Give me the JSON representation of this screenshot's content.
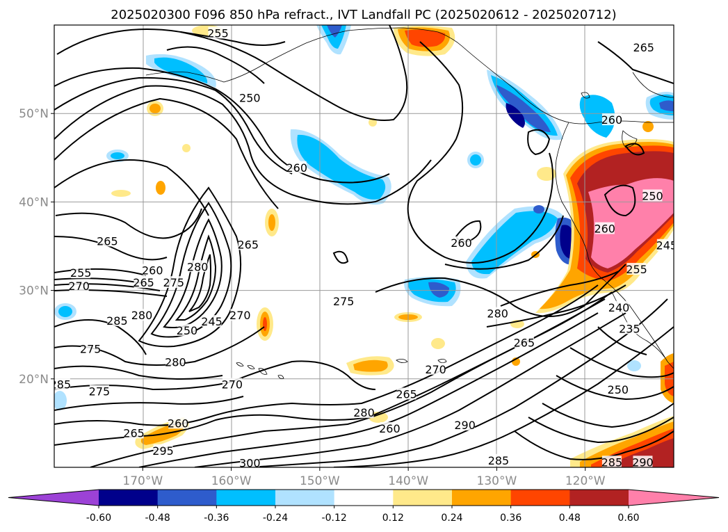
{
  "title": "2025020300 F096 850 hPa refract., IVT Landfall PC (2025020612 - 2025020712)",
  "map": {
    "lon_range": [
      -180,
      -110
    ],
    "lat_range": [
      10,
      60
    ],
    "lon_ticks": [
      {
        "value": -170,
        "label": "170°W"
      },
      {
        "value": -160,
        "label": "160°W"
      },
      {
        "value": -150,
        "label": "150°W"
      },
      {
        "value": -140,
        "label": "140°W"
      },
      {
        "value": -130,
        "label": "130°W"
      },
      {
        "value": -120,
        "label": "120°W"
      }
    ],
    "lat_ticks": [
      {
        "value": 20,
        "label": "20°N"
      },
      {
        "value": 30,
        "label": "30°N"
      },
      {
        "value": 40,
        "label": "40°N"
      },
      {
        "value": 50,
        "label": "50°N"
      }
    ],
    "grid": true,
    "contour_variable": "850 hPa refractivity",
    "contour_labels": [
      {
        "text": "255",
        "lon": -161.5,
        "lat": 59.1
      },
      {
        "text": "250",
        "lon": -157.9,
        "lat": 51.8
      },
      {
        "text": "260",
        "lon": -152.6,
        "lat": 43.9
      },
      {
        "text": "265",
        "lon": -174.0,
        "lat": 35.6
      },
      {
        "text": "255",
        "lon": -177.0,
        "lat": 32.0
      },
      {
        "text": "270",
        "lon": -177.2,
        "lat": 30.5
      },
      {
        "text": "260",
        "lon": -168.9,
        "lat": 32.3
      },
      {
        "text": "265",
        "lon": -169.9,
        "lat": 30.9
      },
      {
        "text": "275",
        "lon": -166.5,
        "lat": 30.9
      },
      {
        "text": "280",
        "lon": -163.8,
        "lat": 32.7
      },
      {
        "text": "265",
        "lon": -158.1,
        "lat": 35.2
      },
      {
        "text": "285",
        "lon": -172.9,
        "lat": 26.6
      },
      {
        "text": "280",
        "lon": -170.1,
        "lat": 27.2
      },
      {
        "text": "250",
        "lon": -165.0,
        "lat": 25.5
      },
      {
        "text": "245",
        "lon": -162.2,
        "lat": 26.5
      },
      {
        "text": "270",
        "lon": -159.0,
        "lat": 27.2
      },
      {
        "text": "275",
        "lon": -175.9,
        "lat": 23.4
      },
      {
        "text": "280",
        "lon": -166.3,
        "lat": 21.9
      },
      {
        "text": "270",
        "lon": -159.9,
        "lat": 19.4
      },
      {
        "text": "275",
        "lon": -174.9,
        "lat": 18.6
      },
      {
        "text": "285",
        "lon": -179.3,
        "lat": 19.4
      },
      {
        "text": "260",
        "lon": -166.0,
        "lat": 15.0
      },
      {
        "text": "265",
        "lon": -171.0,
        "lat": 13.9
      },
      {
        "text": "295",
        "lon": -167.7,
        "lat": 11.9
      },
      {
        "text": "300",
        "lon": -157.9,
        "lat": 10.5
      },
      {
        "text": "275",
        "lon": -147.3,
        "lat": 28.8
      },
      {
        "text": "280",
        "lon": -145.0,
        "lat": 16.2
      },
      {
        "text": "265",
        "lon": -140.2,
        "lat": 18.3
      },
      {
        "text": "270",
        "lon": -136.9,
        "lat": 21.1
      },
      {
        "text": "260",
        "lon": -142.1,
        "lat": 14.4
      },
      {
        "text": "290",
        "lon": -133.6,
        "lat": 14.8
      },
      {
        "text": "280",
        "lon": -129.9,
        "lat": 27.4
      },
      {
        "text": "265",
        "lon": -126.9,
        "lat": 24.1
      },
      {
        "text": "260",
        "lon": -134.0,
        "lat": 35.4
      },
      {
        "text": "265",
        "lon": -113.4,
        "lat": 57.5
      },
      {
        "text": "260",
        "lon": -117.0,
        "lat": 49.3
      },
      {
        "text": "260",
        "lon": -117.8,
        "lat": 37.0
      },
      {
        "text": "250",
        "lon": -112.4,
        "lat": 40.7
      },
      {
        "text": "255",
        "lon": -114.2,
        "lat": 32.4
      },
      {
        "text": "245",
        "lon": -110.8,
        "lat": 35.1
      },
      {
        "text": "240",
        "lon": -116.2,
        "lat": 28.1
      },
      {
        "text": "235",
        "lon": -115.0,
        "lat": 25.7
      },
      {
        "text": "250",
        "lon": -116.3,
        "lat": 18.8
      },
      {
        "text": "285",
        "lon": -117.0,
        "lat": 10.6
      },
      {
        "text": "290",
        "lon": -113.5,
        "lat": 10.6
      },
      {
        "text": "285",
        "lon": -129.8,
        "lat": 10.8
      }
    ]
  },
  "colorbar": {
    "ticks": [
      "-0.60",
      "-0.48",
      "-0.36",
      "-0.24",
      "-0.12",
      "0.12",
      "0.24",
      "0.36",
      "0.48",
      "0.60"
    ],
    "extend": "both",
    "colors": {
      "under": "#9c42d6",
      "bins": [
        "#00008b",
        "#2e5ccc",
        "#00bfff",
        "#b0e2ff",
        "#ffffff",
        "#ffe98a",
        "#ffa500",
        "#ff4500",
        "#b22222"
      ],
      "over": "#ff80aa"
    }
  },
  "colors": {
    "contour": "#000000",
    "grid": "#999999",
    "tick_label": "#8a8a8a"
  }
}
